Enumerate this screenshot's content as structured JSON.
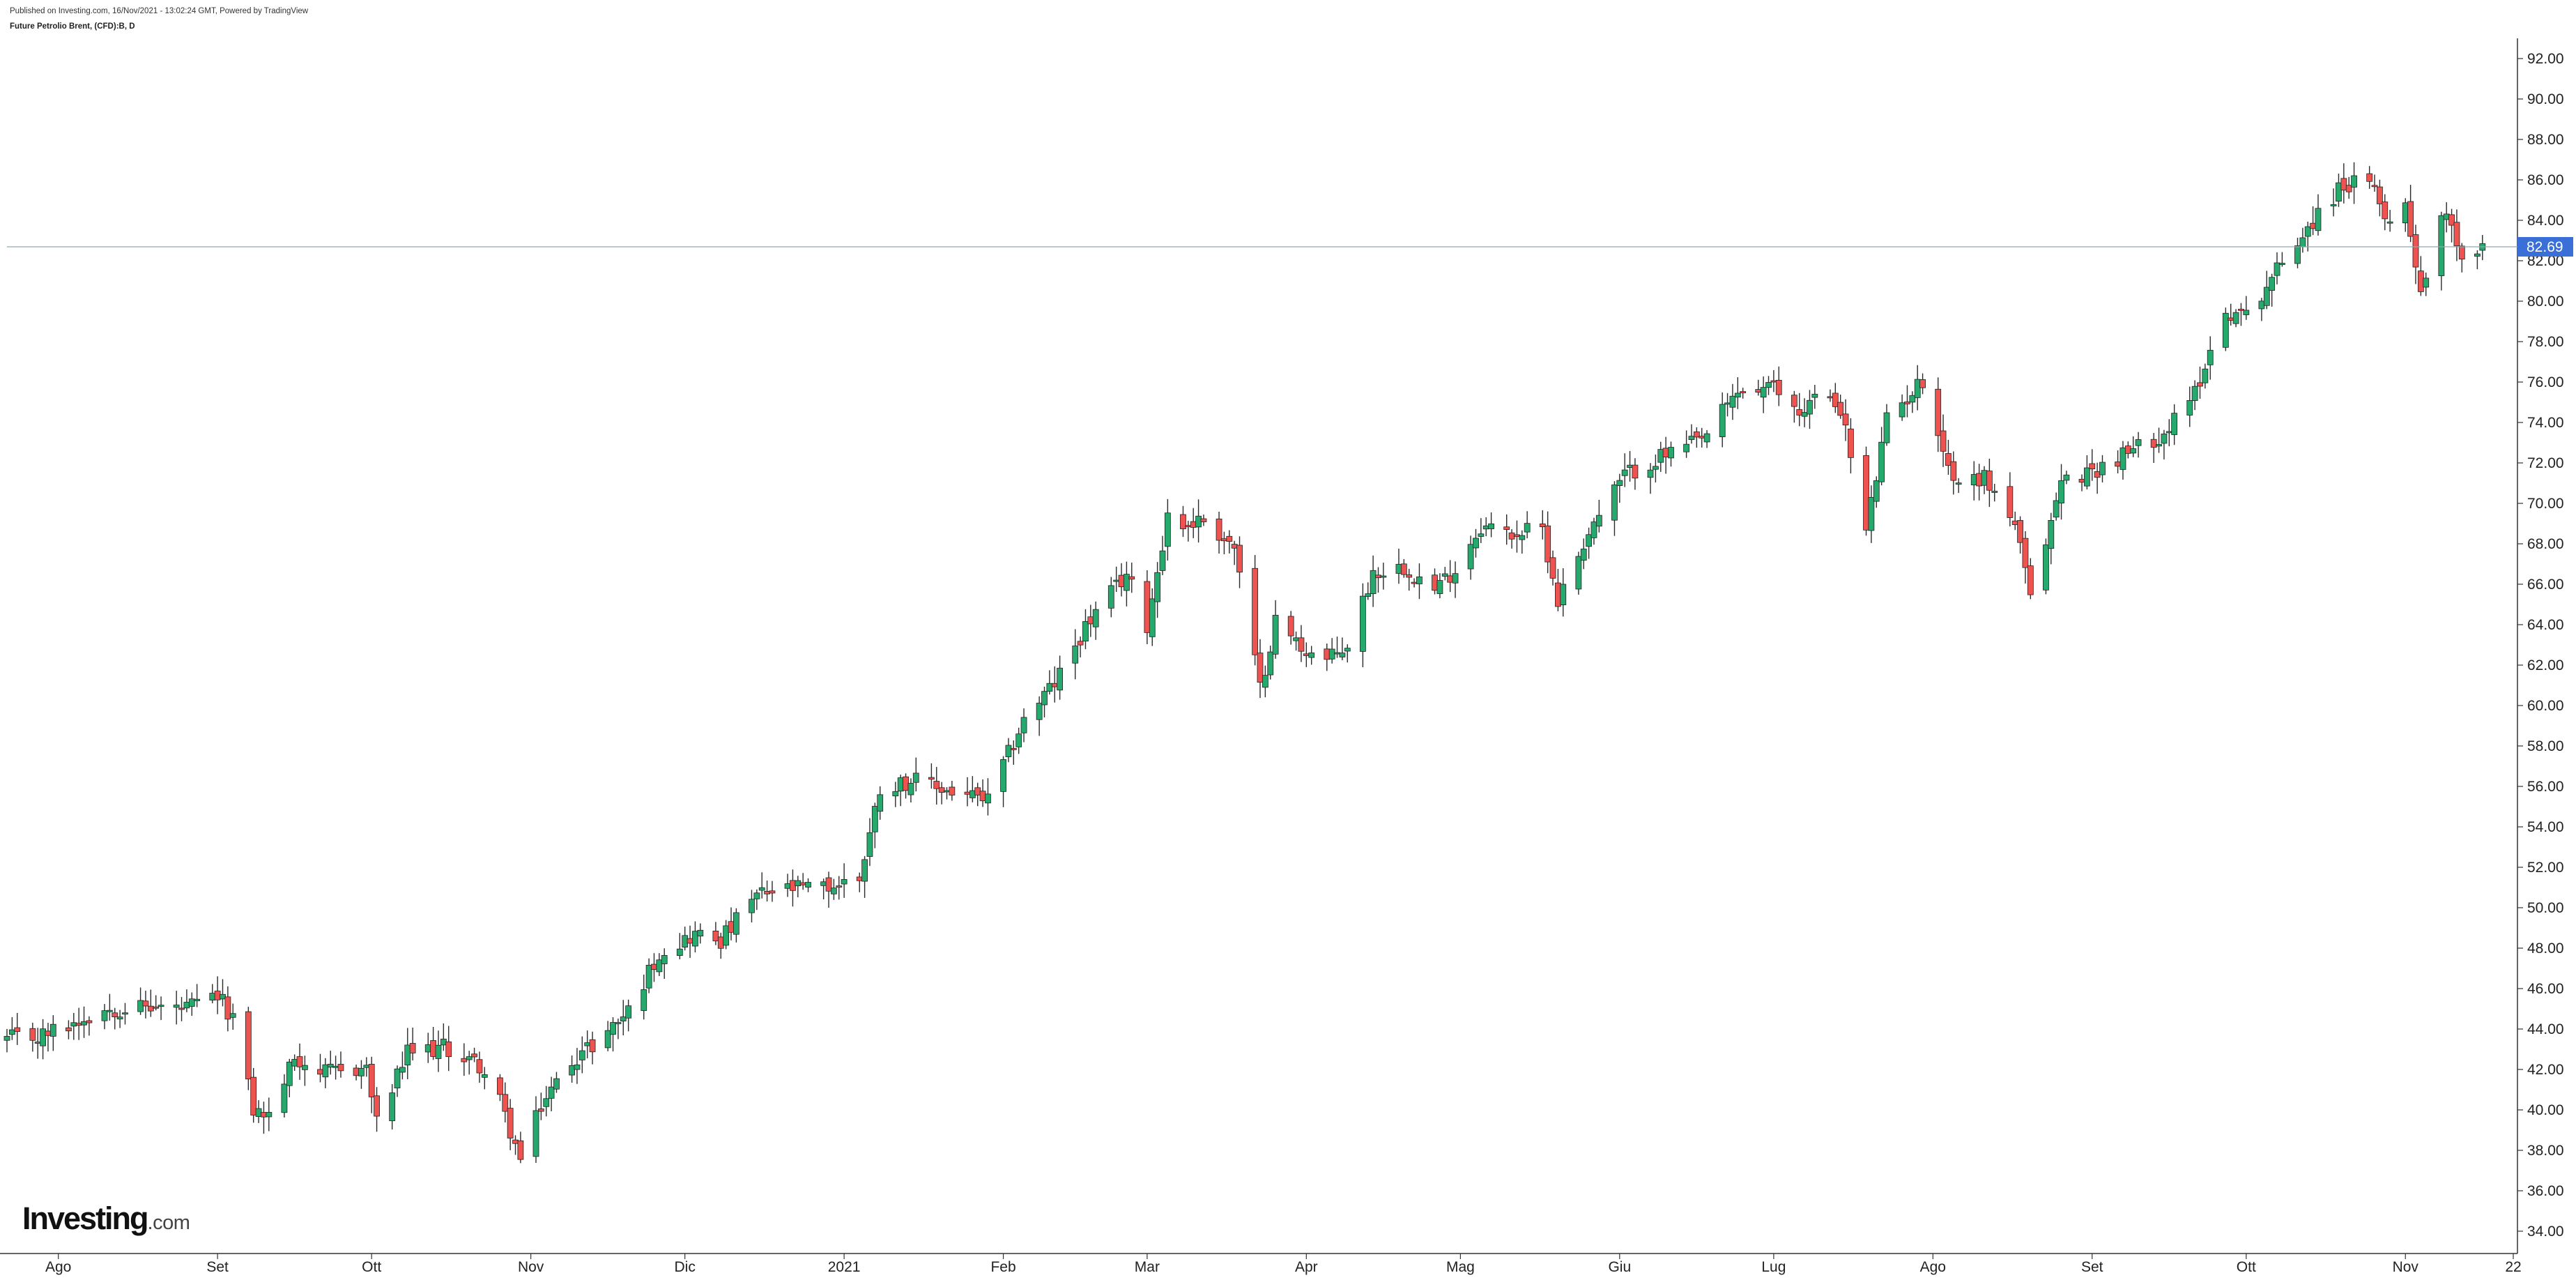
{
  "header": {
    "published": "Published on Investing.com, 16/Nov/2021 - 13:02:24 GMT, Powered by TradingView",
    "symbol": "Future Petrolio Brent, (CFD):B, D"
  },
  "logo": {
    "brand": "Investing",
    "suffix": ".com"
  },
  "colors": {
    "up": "#26a96c",
    "down": "#ef5350",
    "wick": "#2a2a2a",
    "last_price_bg": "#3a6fd8",
    "last_price_line": "#8fa9b5"
  },
  "chart_data": {
    "type": "candlestick",
    "ylim": [
      33,
      93
    ],
    "ytick_values": [
      34,
      36,
      38,
      40,
      42,
      44,
      46,
      48,
      50,
      52,
      54,
      56,
      58,
      60,
      62,
      64,
      66,
      68,
      70,
      72,
      74,
      76,
      78,
      80,
      82,
      84,
      86,
      88,
      90,
      92
    ],
    "ytick_labels": [
      "34.00",
      "36.00",
      "38.00",
      "40.00",
      "42.00",
      "44.00",
      "46.00",
      "48.00",
      "50.00",
      "52.00",
      "54.00",
      "56.00",
      "58.00",
      "60.00",
      "62.00",
      "64.00",
      "66.00",
      "68.00",
      "70.00",
      "72.00",
      "74.00",
      "76.00",
      "78.00",
      "80.00",
      "82.00",
      "84.00",
      "86.00",
      "88.00",
      "90.00",
      "92.00"
    ],
    "x_start": "2020-07-22",
    "x_end": "2021-11-22",
    "xticks": [
      {
        "date": "2020-08-01",
        "label": "Ago"
      },
      {
        "date": "2020-09-01",
        "label": "Set"
      },
      {
        "date": "2020-10-01",
        "label": "Ott"
      },
      {
        "date": "2020-11-01",
        "label": "Nov"
      },
      {
        "date": "2020-12-01",
        "label": "Dic"
      },
      {
        "date": "2021-01-01",
        "label": "2021"
      },
      {
        "date": "2021-02-01",
        "label": "Feb"
      },
      {
        "date": "2021-03-01",
        "label": "Mar"
      },
      {
        "date": "2021-04-01",
        "label": "Apr"
      },
      {
        "date": "2021-05-01",
        "label": "Mag"
      },
      {
        "date": "2021-06-01",
        "label": "Giu"
      },
      {
        "date": "2021-07-01",
        "label": "Lug"
      },
      {
        "date": "2021-08-01",
        "label": "Ago"
      },
      {
        "date": "2021-09-01",
        "label": "Set"
      },
      {
        "date": "2021-10-01",
        "label": "Ott"
      },
      {
        "date": "2021-11-01",
        "label": "Nov"
      },
      {
        "date": "2021-11-22",
        "label": "22"
      }
    ],
    "last_price": 82.69,
    "last_price_label": "82.69",
    "close_anchors": [
      [
        "2020-07-22",
        43.5
      ],
      [
        "2020-07-28",
        43.6
      ],
      [
        "2020-08-03",
        44.2
      ],
      [
        "2020-08-10",
        45.0
      ],
      [
        "2020-08-17",
        45.1
      ],
      [
        "2020-08-26",
        45.0
      ],
      [
        "2020-09-01",
        45.6
      ],
      [
        "2020-09-04",
        44.6
      ],
      [
        "2020-09-08",
        40.0
      ],
      [
        "2020-09-11",
        39.7
      ],
      [
        "2020-09-16",
        42.6
      ],
      [
        "2020-09-22",
        41.8
      ],
      [
        "2020-09-30",
        42.1
      ],
      [
        "2020-10-02",
        39.3
      ],
      [
        "2020-10-08",
        42.8
      ],
      [
        "2020-10-15",
        43.1
      ],
      [
        "2020-10-22",
        42.2
      ],
      [
        "2020-10-26",
        40.4
      ],
      [
        "2020-10-30",
        37.5
      ],
      [
        "2020-11-03",
        40.2
      ],
      [
        "2020-11-09",
        42.5
      ],
      [
        "2020-11-13",
        43.2
      ],
      [
        "2020-11-20",
        44.9
      ],
      [
        "2020-11-26",
        47.8
      ],
      [
        "2020-12-03",
        48.7
      ],
      [
        "2020-12-08",
        48.4
      ],
      [
        "2020-12-15",
        50.6
      ],
      [
        "2020-12-21",
        50.9
      ],
      [
        "2020-12-29",
        51.0
      ],
      [
        "2021-01-04",
        51.5
      ],
      [
        "2021-01-08",
        55.9
      ],
      [
        "2021-01-14",
        56.3
      ],
      [
        "2021-01-21",
        55.8
      ],
      [
        "2021-01-29",
        55.3
      ],
      [
        "2021-02-05",
        59.3
      ],
      [
        "2021-02-11",
        61.1
      ],
      [
        "2021-02-17",
        63.9
      ],
      [
        "2021-02-25",
        66.5
      ],
      [
        "2021-03-01",
        64.0
      ],
      [
        "2021-03-05",
        69.4
      ],
      [
        "2021-03-08",
        68.9
      ],
      [
        "2021-03-12",
        69.2
      ],
      [
        "2021-03-18",
        67.8
      ],
      [
        "2021-03-23",
        60.8
      ],
      [
        "2021-03-26",
        64.2
      ],
      [
        "2021-03-31",
        62.9
      ],
      [
        "2021-04-05",
        62.2
      ],
      [
        "2021-04-09",
        63.0
      ],
      [
        "2021-04-14",
        66.6
      ],
      [
        "2021-04-20",
        66.9
      ],
      [
        "2021-04-26",
        65.7
      ],
      [
        "2021-04-30",
        66.8
      ],
      [
        "2021-05-05",
        68.9
      ],
      [
        "2021-05-11",
        68.5
      ],
      [
        "2021-05-17",
        68.7
      ],
      [
        "2021-05-20",
        65.2
      ],
      [
        "2021-05-26",
        68.6
      ],
      [
        "2021-06-02",
        71.4
      ],
      [
        "2021-06-10",
        72.4
      ],
      [
        "2021-06-17",
        73.1
      ],
      [
        "2021-06-24",
        75.5
      ],
      [
        "2021-07-01",
        75.7
      ],
      [
        "2021-07-06",
        74.5
      ],
      [
        "2021-07-09",
        75.3
      ],
      [
        "2021-07-14",
        74.8
      ],
      [
        "2021-07-19",
        68.6
      ],
      [
        "2021-07-23",
        74.1
      ],
      [
        "2021-07-30",
        76.1
      ],
      [
        "2021-08-05",
        71.1
      ],
      [
        "2021-08-11",
        71.3
      ],
      [
        "2021-08-17",
        69.0
      ],
      [
        "2021-08-20",
        65.2
      ],
      [
        "2021-08-26",
        71.1
      ],
      [
        "2021-09-01",
        71.6
      ],
      [
        "2021-09-08",
        72.5
      ],
      [
        "2021-09-15",
        73.5
      ],
      [
        "2021-09-20",
        74.9
      ],
      [
        "2021-09-27",
        79.5
      ],
      [
        "2021-10-01",
        79.3
      ],
      [
        "2021-10-06",
        81.2
      ],
      [
        "2021-10-12",
        83.4
      ],
      [
        "2021-10-20",
        85.8
      ],
      [
        "2021-10-25",
        85.7
      ],
      [
        "2021-10-29",
        84.0
      ],
      [
        "2021-11-01",
        84.8
      ],
      [
        "2021-11-04",
        80.6
      ],
      [
        "2021-11-09",
        84.7
      ],
      [
        "2021-11-12",
        82.2
      ],
      [
        "2021-11-16",
        82.7
      ]
    ]
  }
}
